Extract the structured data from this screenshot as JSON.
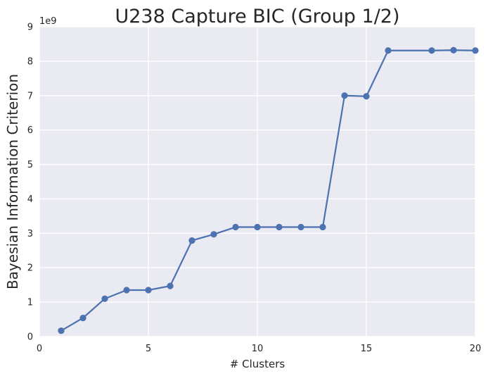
{
  "chart_data": {
    "type": "line",
    "title": "U238 Capture BIC (Group 1/2)",
    "xlabel": "# Clusters",
    "ylabel": "Bayesian Information Criterion",
    "y_offset_label": "1e9",
    "xlim": [
      0,
      20
    ],
    "ylim": [
      0,
      9
    ],
    "xticks": [
      0,
      5,
      10,
      15,
      20
    ],
    "yticks": [
      0,
      1,
      2,
      3,
      4,
      5,
      6,
      7,
      8,
      9
    ],
    "grid": true,
    "legend": "none",
    "series": [
      {
        "x": [
          1,
          2,
          3,
          4,
          5,
          6,
          7,
          8,
          9,
          10,
          11,
          12,
          13,
          14,
          15,
          16,
          18,
          19,
          20
        ],
        "values": [
          0.17,
          0.54,
          1.1,
          1.35,
          1.35,
          1.47,
          2.79,
          2.97,
          3.18,
          3.18,
          3.18,
          3.18,
          3.18,
          7.0,
          6.98,
          8.31,
          8.31,
          8.32,
          8.31
        ],
        "color": "#4c72b0"
      }
    ],
    "colors": {
      "plot_background": "#eaeaf2",
      "grid": "#ffffff",
      "line": "#4c72b0",
      "text": "#262626"
    }
  }
}
